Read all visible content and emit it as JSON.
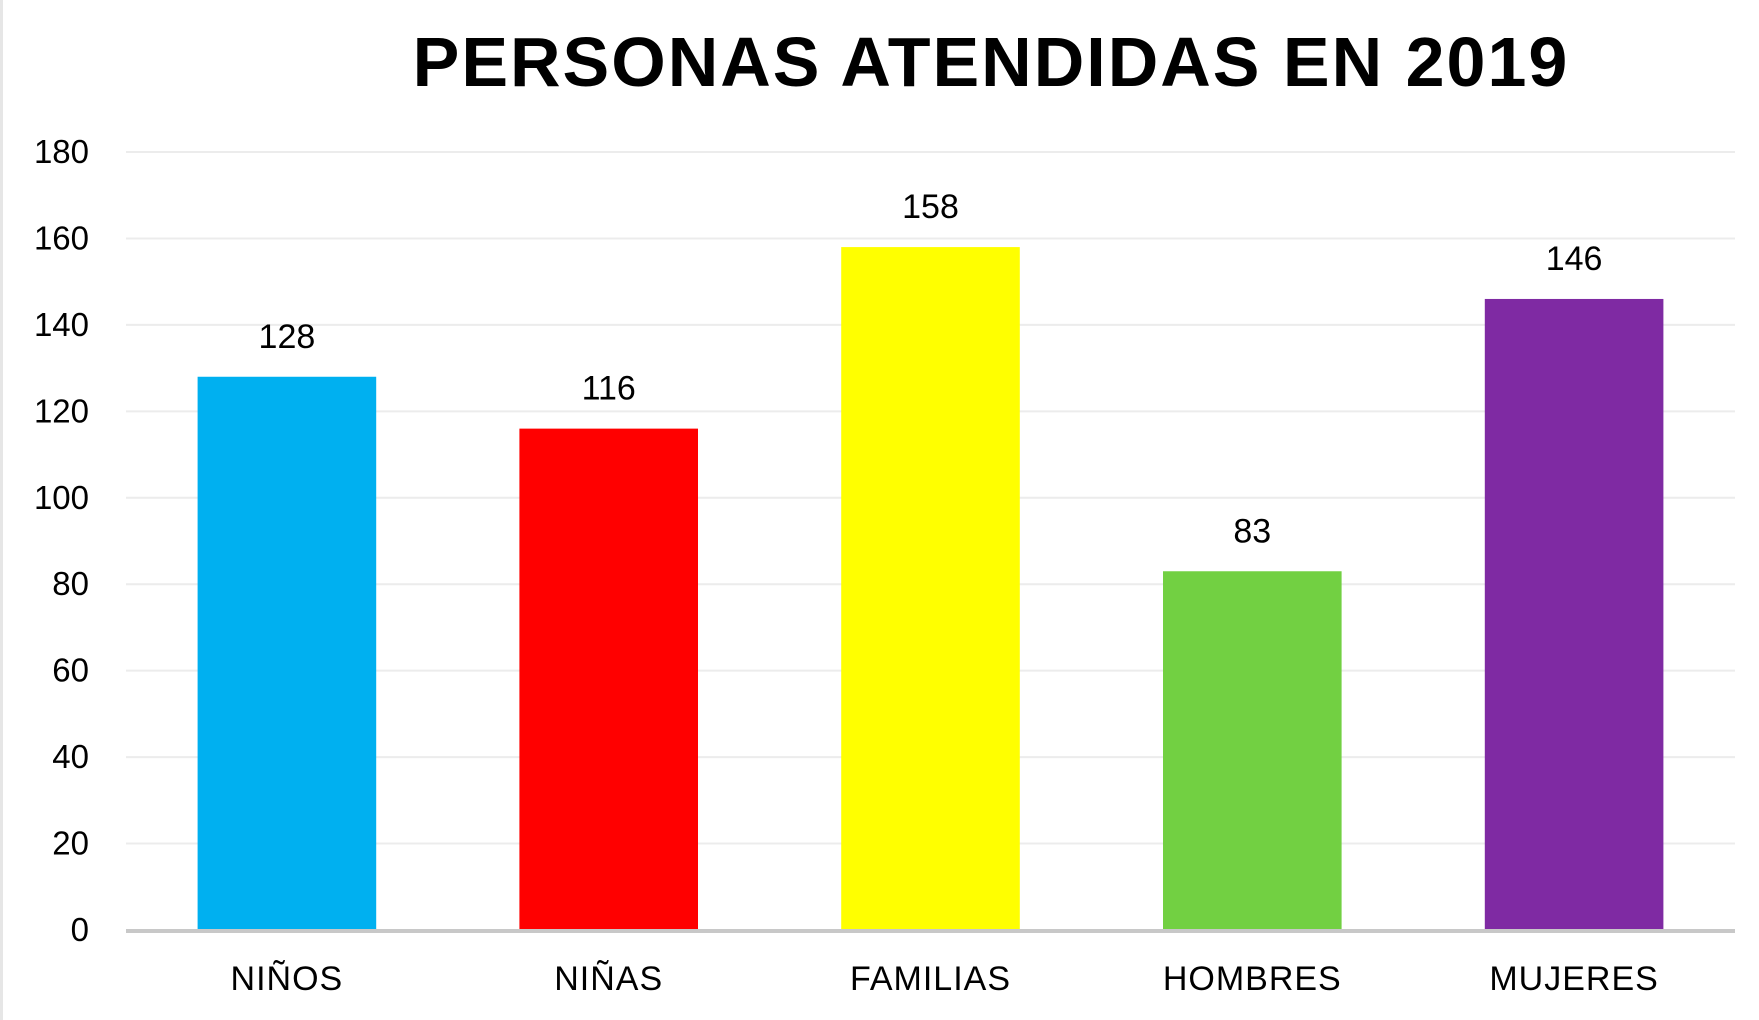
{
  "chart_data": {
    "type": "bar",
    "title": "PERSONAS ATENDIDAS EN 2019",
    "categories": [
      "NIÑOS",
      "NIÑAS",
      "FAMILIAS",
      "HOMBRES",
      "MUJERES"
    ],
    "values": [
      128,
      116,
      158,
      83,
      146
    ],
    "colors": [
      "#00b0f0",
      "#ff0000",
      "#ffff00",
      "#72d042",
      "#7f2aa3"
    ],
    "ylim": [
      0,
      180
    ],
    "yticks": [
      0,
      20,
      40,
      60,
      80,
      100,
      120,
      140,
      160,
      180
    ],
    "grid": true,
    "legend": "none",
    "xlabel": "",
    "ylabel": ""
  }
}
